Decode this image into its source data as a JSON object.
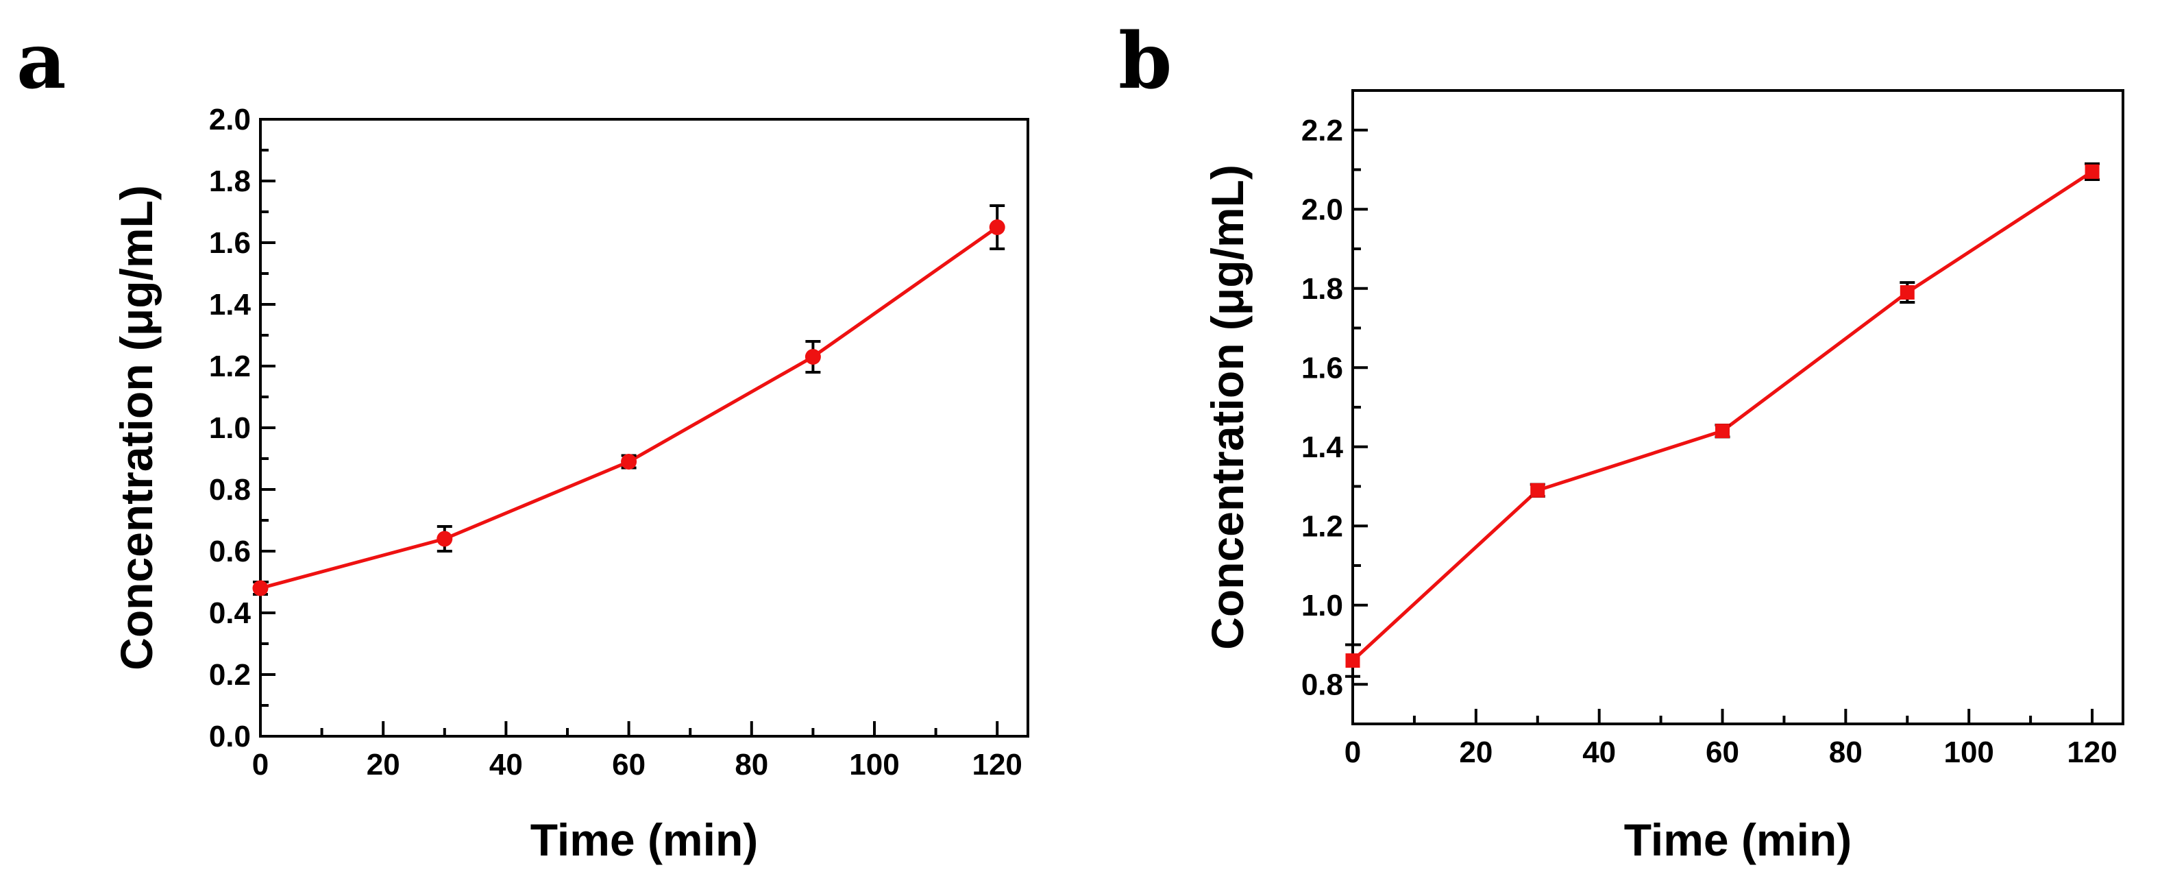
{
  "chart_data": [
    {
      "panel": "a",
      "type": "line",
      "title": "",
      "xlabel": "Time (min)",
      "ylabel": "Concentration (μg/mL)",
      "x": [
        0,
        30,
        60,
        90,
        120
      ],
      "series": [
        {
          "name": "Concentration",
          "values": [
            0.48,
            0.64,
            0.89,
            1.23,
            1.65
          ],
          "errors": [
            0.02,
            0.04,
            0.02,
            0.05,
            0.07
          ],
          "color": "#ee1111",
          "marker": "circle"
        }
      ],
      "xlim": [
        0,
        125
      ],
      "ylim": [
        0,
        2.0
      ],
      "xticks": [
        "0",
        "20",
        "40",
        "60",
        "80",
        "100",
        "120"
      ],
      "yticks": [
        "0.0",
        "0.2",
        "0.4",
        "0.6",
        "0.8",
        "1.0",
        "1.2",
        "1.4",
        "1.6",
        "1.8",
        "2.0"
      ],
      "grid": false,
      "legend": "none"
    },
    {
      "panel": "b",
      "type": "line",
      "title": "",
      "xlabel": "Time (min)",
      "ylabel": "Concentration (μg/mL)",
      "x": [
        0,
        30,
        60,
        90,
        120
      ],
      "series": [
        {
          "name": "Concentration",
          "values": [
            0.86,
            1.29,
            1.44,
            1.79,
            2.095
          ],
          "errors": [
            0.04,
            0.015,
            0.015,
            0.025,
            0.02
          ],
          "color": "#ee1111",
          "marker": "square"
        }
      ],
      "xlim": [
        0,
        125
      ],
      "ylim": [
        0.7,
        2.3
      ],
      "xticks": [
        "0",
        "20",
        "40",
        "60",
        "80",
        "100",
        "120"
      ],
      "yticks": [
        "0.8",
        "1.0",
        "1.2",
        "1.4",
        "1.6",
        "1.8",
        "2.0",
        "2.2"
      ],
      "grid": false,
      "legend": "none"
    }
  ]
}
